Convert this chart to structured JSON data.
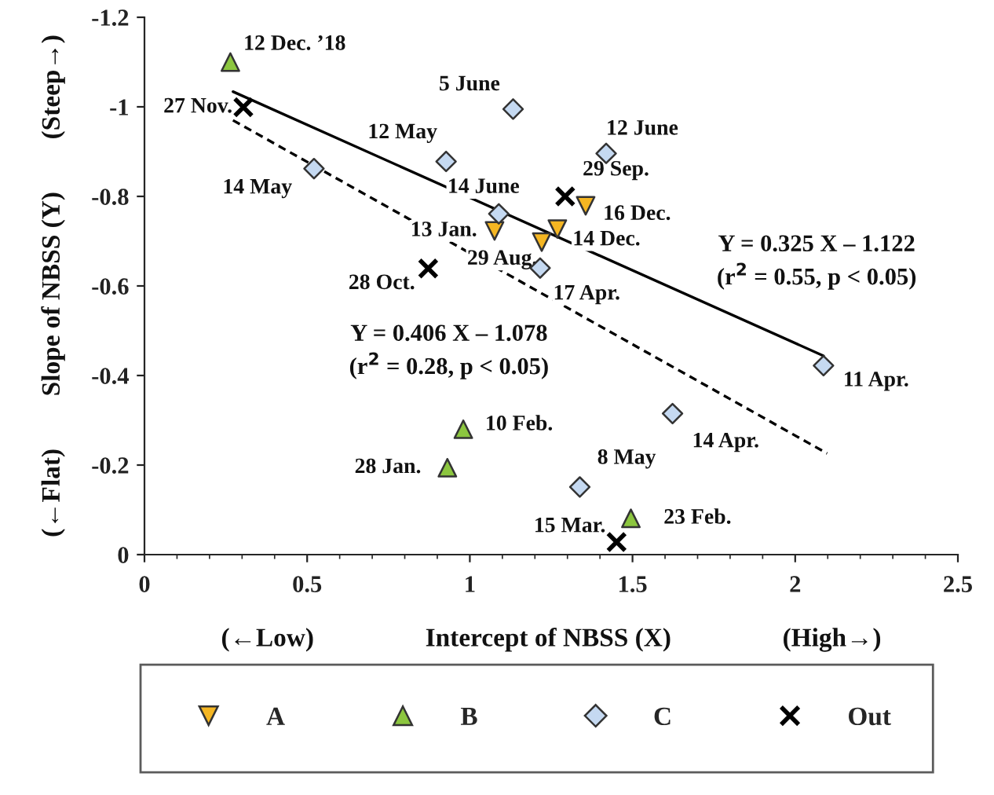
{
  "chart_data": {
    "type": "scatter",
    "xlabel": "(←Low)                 Intercept of NBSS (X)                 (High→)",
    "ylabel": "(←Flat)        Slope of NBSS (Y)        (Steep→)",
    "xlim": [
      0,
      2.5
    ],
    "xticks": [
      0,
      0.5,
      1,
      1.5,
      2,
      2.5
    ],
    "ylim": [
      0,
      -1.2
    ],
    "yticks": [
      0,
      -0.2,
      -0.4,
      -0.6,
      -0.8,
      -1,
      -1.2
    ],
    "grid": false,
    "legend": "bottom",
    "series": [
      {
        "name": "A",
        "marker": "triangle_down",
        "color": "#f5b622",
        "x": [
          1.076,
          1.221,
          1.269,
          1.356
        ],
        "values": [
          -0.723,
          -0.698,
          -0.727,
          -0.779
        ]
      },
      {
        "name": "B",
        "marker": "triangle",
        "color": "#8cc63f",
        "x": [
          0.264,
          0.98,
          0.931,
          1.495
        ],
        "values": [
          -1.1,
          -0.28,
          -0.194,
          -0.081
        ]
      },
      {
        "name": "C",
        "marker": "diamond",
        "color": "#c5d9f1",
        "x": [
          1.133,
          0.927,
          0.521,
          1.089,
          1.216,
          1.419,
          2.087,
          1.623,
          1.338
        ],
        "values": [
          -0.995,
          -0.878,
          -0.862,
          -0.761,
          -0.64,
          -0.896,
          -0.422,
          -0.315,
          -0.151
        ]
      },
      {
        "name": "Out",
        "marker": "cross",
        "color": "#000000",
        "x": [
          0.304,
          0.872,
          1.293,
          1.451
        ],
        "values": [
          -0.999,
          -0.639,
          -0.8,
          -0.028
        ]
      },
      {
        "type": "line",
        "line_style": "solid",
        "marker": "none",
        "color": "#000000",
        "x": [
          0.272,
          2.087
        ],
        "values": [
          -1.034,
          -0.444
        ]
      },
      {
        "type": "line",
        "line_style": "dashed",
        "marker": "none",
        "color": "#000000",
        "x": [
          0.272,
          2.098
        ],
        "values": [
          -0.97,
          -0.226
        ]
      }
    ],
    "annotations": [
      {
        "text": "13 Jan.",
        "x": 1.076,
        "y": -0.723
      },
      {
        "text": "29 Aug.",
        "x": 1.221,
        "y": -0.698
      },
      {
        "text": "14 Dec.",
        "x": 1.269,
        "y": -0.727
      },
      {
        "text": "16 Dec.",
        "x": 1.356,
        "y": -0.779
      },
      {
        "text": "12 Dec. ’18",
        "x": 0.264,
        "y": -1.1
      },
      {
        "text": "10 Feb.",
        "x": 0.98,
        "y": -0.28
      },
      {
        "text": "28 Jan.",
        "x": 0.931,
        "y": -0.194
      },
      {
        "text": "23 Feb.",
        "x": 1.495,
        "y": -0.081
      },
      {
        "text": "5 June",
        "x": 1.133,
        "y": -0.995
      },
      {
        "text": "12 May",
        "x": 0.927,
        "y": -0.878
      },
      {
        "text": "14 May",
        "x": 0.521,
        "y": -0.862
      },
      {
        "text": "14 June",
        "x": 1.089,
        "y": -0.761
      },
      {
        "text": "17 Apr.",
        "x": 1.216,
        "y": -0.64
      },
      {
        "text": "12 June",
        "x": 1.419,
        "y": -0.896
      },
      {
        "text": "11 Apr.",
        "x": 2.087,
        "y": -0.422
      },
      {
        "text": "14 Apr.",
        "x": 1.623,
        "y": -0.315
      },
      {
        "text": "8 May",
        "x": 1.338,
        "y": -0.151
      },
      {
        "text": "27 Nov.",
        "x": 0.304,
        "y": -0.999
      },
      {
        "text": "28 Oct.",
        "x": 0.872,
        "y": -0.639
      },
      {
        "text": "29 Sep.",
        "x": 1.293,
        "y": -0.8
      },
      {
        "text": "15 Mar.",
        "x": 1.451,
        "y": -0.028
      },
      "Y = 0.325 X – 1.122\n(r$^{2}$ = 0.55, p < 0.05)",
      "Y = 0.406 X – 1.078\n(r$^{2}$ = 0.28, p < 0.05)"
    ]
  }
}
